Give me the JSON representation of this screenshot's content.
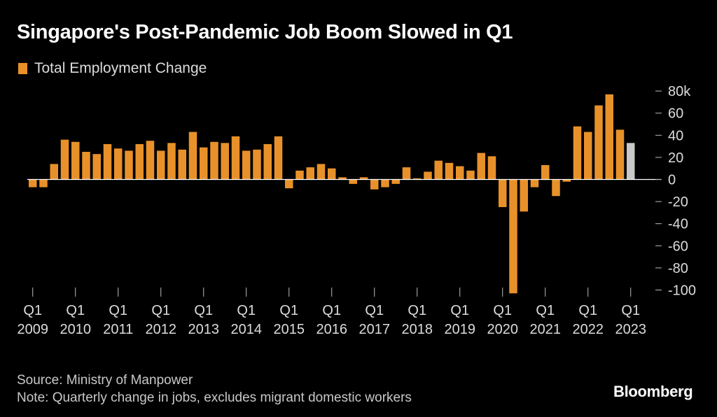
{
  "title": "Singapore's Post-Pandemic Job Boom Slowed in Q1",
  "legend": {
    "label": "Total Employment Change"
  },
  "colors": {
    "bar": "#E8912A",
    "highlight": "#C8C8C8",
    "axis": "#FFFFFF",
    "tick_text": "#DCDCDC"
  },
  "chart_data": {
    "type": "bar",
    "series": [
      {
        "name": "Total Employment Change",
        "unit": "thousands",
        "values": [
          -7,
          -7,
          14,
          36,
          34,
          25,
          23,
          32,
          28,
          26,
          32,
          35,
          26,
          33,
          27,
          43,
          29,
          34,
          33,
          39,
          26,
          27,
          32,
          39,
          -8,
          8,
          11,
          14,
          10,
          2,
          -4,
          2,
          -9,
          -7,
          -4,
          11,
          1,
          7,
          17,
          15,
          12,
          8,
          24,
          21,
          -25,
          -103,
          -29,
          -7,
          13,
          -15,
          -2,
          48,
          43,
          67,
          77,
          45,
          33
        ]
      }
    ],
    "highlight_index": 56,
    "x_ticks": [
      {
        "label": "Q1",
        "year": "2009",
        "index": 0
      },
      {
        "label": "Q1",
        "year": "2010",
        "index": 4
      },
      {
        "label": "Q1",
        "year": "2011",
        "index": 8
      },
      {
        "label": "Q1",
        "year": "2012",
        "index": 12
      },
      {
        "label": "Q1",
        "year": "2013",
        "index": 16
      },
      {
        "label": "Q1",
        "year": "2014",
        "index": 20
      },
      {
        "label": "Q1",
        "year": "2015",
        "index": 24
      },
      {
        "label": "Q1",
        "year": "2016",
        "index": 28
      },
      {
        "label": "Q1",
        "year": "2017",
        "index": 32
      },
      {
        "label": "Q1",
        "year": "2018",
        "index": 36
      },
      {
        "label": "Q1",
        "year": "2019",
        "index": 40
      },
      {
        "label": "Q1",
        "year": "2020",
        "index": 44
      },
      {
        "label": "Q1",
        "year": "2021",
        "index": 48
      },
      {
        "label": "Q1",
        "year": "2022",
        "index": 52
      },
      {
        "label": "Q1",
        "year": "2023",
        "index": 56
      }
    ],
    "y_ticks": [
      {
        "value": 80,
        "label": "80k"
      },
      {
        "value": 60,
        "label": "60"
      },
      {
        "value": 40,
        "label": "40"
      },
      {
        "value": 20,
        "label": "20"
      },
      {
        "value": 0,
        "label": "0"
      },
      {
        "value": -20,
        "label": "-20"
      },
      {
        "value": -40,
        "label": "-40"
      },
      {
        "value": -60,
        "label": "-60"
      },
      {
        "value": -80,
        "label": "-80"
      },
      {
        "value": -100,
        "label": "-100"
      }
    ],
    "ylim": [
      -103,
      85
    ],
    "y_axis_position": "right",
    "grid": false
  },
  "footer": {
    "source": "Source: Ministry of Manpower",
    "note": "Note: Quarterly change in jobs, excludes migrant domestic workers"
  },
  "brand": "Bloomberg"
}
